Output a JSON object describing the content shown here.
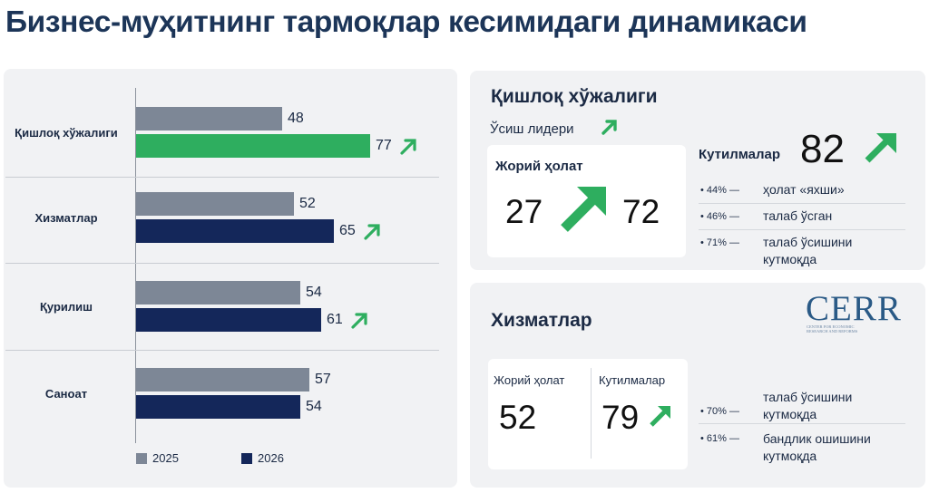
{
  "title": "Бизнес-муҳитнинг тармоқлар кесимидаги динамикаси",
  "chart_data": {
    "type": "bar",
    "orientation": "horizontal",
    "categories": [
      "Қишлоқ хўжалиги",
      "Хизматлар",
      "Қурилиш",
      "Саноат"
    ],
    "series": [
      {
        "name": "2025",
        "values": [
          48,
          52,
          54,
          57
        ],
        "color": "#7d8796"
      },
      {
        "name": "2026",
        "values": [
          77,
          65,
          61,
          54
        ],
        "colors": [
          "#2eae5f",
          "#14275a",
          "#14275a",
          "#14275a"
        ]
      }
    ],
    "up_arrow_after_2026": [
      true,
      true,
      true,
      false
    ],
    "grid": false,
    "legend": "bottom-left"
  },
  "agri": {
    "title": "Қишлоқ хўжалиги",
    "leader": "Ўсиш лидери",
    "current_label": "Жорий ҳолат",
    "current_from": "27",
    "current_to": "72",
    "expect_label": "Кутилмалар",
    "expect_value": "82",
    "bullets": [
      {
        "pct": "44% —",
        "text": "ҳолат «яхши»"
      },
      {
        "pct": "46% —",
        "text": "талаб ўсган"
      },
      {
        "pct": "71% —",
        "text_1": "талаб ўсишини",
        "text_2": "кутмоқда"
      }
    ]
  },
  "services": {
    "title": "Хизматлар",
    "current_label": "Жорий ҳолат",
    "current_value": "52",
    "expect_label": "Кутилмалар",
    "expect_value": "79",
    "bullets": [
      {
        "pct": "• 70% —",
        "text_1": "талаб ўсишини",
        "text_2": "кутмоқда"
      },
      {
        "pct": "• 61% —",
        "text_1": "бандлик ошишини",
        "text_2": "кутмоқда"
      }
    ]
  },
  "logo": {
    "word": "CERR",
    "sub_1": "CENTER FOR ECONOMIC",
    "sub_2": "RESEARCH AND REFORMS"
  },
  "colors": {
    "green": "#2eae5f",
    "navy": "#14275a",
    "gray": "#7d8796",
    "title": "#1c3558"
  },
  "icons": {
    "growth_arrow": "arrow-up-right-icon"
  }
}
